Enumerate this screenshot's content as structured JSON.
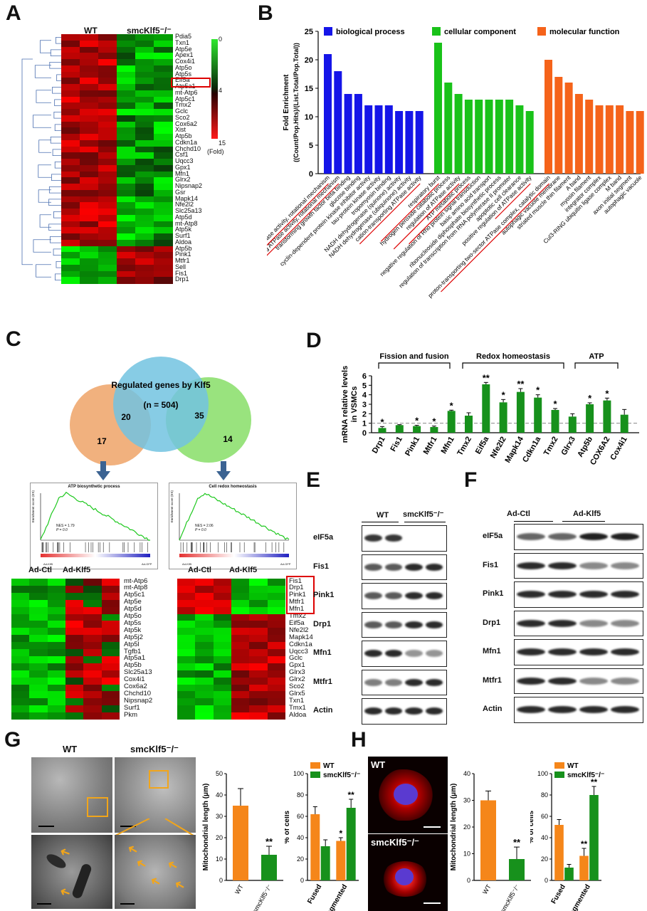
{
  "panels": {
    "A": "A",
    "B": "B",
    "C": "C",
    "D": "D",
    "E": "E",
    "F": "F",
    "G": "G",
    "H": "H"
  },
  "panelA": {
    "col_labels": [
      "WT",
      "smcKlf5⁻/⁻"
    ],
    "genes": [
      "Pdia5",
      "Txn1",
      "Atp5e",
      "Apex1",
      "Cox4i1",
      "Atp5o",
      "Atp5s",
      "Eif5a",
      "Atp5a1",
      "mt-Atp6",
      "Atp5c1",
      "Tmx2",
      "Gclc",
      "Sco2",
      "Cox6a2",
      "Xist",
      "Atp5b",
      "Cdkn1a",
      "Chchd10",
      "Csf1",
      "Uqcc3",
      "Gpx1",
      "Mfn1",
      "Glrx2",
      "Nipsnap2",
      "Gsr",
      "Mapk14",
      "Nfe2l2",
      "Slc25a13",
      "Atp5d",
      "mt-Atp8",
      "Atp5k",
      "Surf1",
      "Aldoa",
      "Atp5b",
      "Pink1",
      "Mtfr1",
      "Sell",
      "Fis1",
      "Drp1"
    ],
    "scale": {
      "top": "0",
      "mid": "4",
      "bottom": "15",
      "unit": "(Fold)"
    }
  },
  "panelB": {
    "chart_data": {
      "type": "bar",
      "ylabel": "Fold Enrichment ((Count/Pop.Hits)/(List.Total/Pop.Total))",
      "ylim": [
        0,
        25
      ],
      "yticks": [
        0,
        5,
        10,
        15,
        20,
        25
      ],
      "legend": [
        "biological process",
        "cellular component",
        "molecular function"
      ],
      "colors": [
        "#1515e8",
        "#19c219",
        "#f5631a"
      ],
      "groups": [
        {
          "name": "biological process",
          "categories": [
            "hydrogen ion transporting ATP synthase activity, rotational mechanism",
            "proton-transporting ATPase activity, rotational mechanism",
            "transforming growth factor beta binding",
            "glucose binding",
            "cyclin-dependent protein kinase inhibitor activity",
            "tau-protein kinase activity",
            "tropomyosin binding",
            "NADH dehydrogenase (quinone) activity",
            "NADH dehydrogenase (ubiquinone) activity",
            "cation-transporting ATPase activity"
          ],
          "values": [
            21,
            18,
            14,
            14,
            12,
            12,
            12,
            11,
            11,
            11
          ]
        },
        {
          "name": "cellular component",
          "categories": [
            "respiratory burst",
            "hydrogen peroxide catabolic process",
            "regulation of ATPase activity",
            "ATP metabolic process",
            "negative regulation of Rho protein signal transduction",
            "basic amino acid transport",
            "ribonucleoside diphosphate biosynthetic process",
            "regulation of transcription from RNA polymerase II promoter",
            "apoptotic cell clearance",
            "positive regulation of ATPase activity"
          ],
          "values": [
            23,
            16,
            14,
            13,
            13,
            13,
            13,
            13,
            12,
            11
          ]
        },
        {
          "name": "molecular function",
          "categories": [
            "proton-transporting two-sector ATPase complex, catalytic domain",
            "autophagic vacuole membrane",
            "striated muscle thin filament",
            "A band",
            "myosin filament",
            "integrator complex",
            "Cul3-RING ubiquitin ligase complex",
            "M band",
            "axon initial segment",
            "autophagic vacuole"
          ],
          "values": [
            20,
            17,
            16,
            14,
            13,
            12,
            12,
            12,
            11,
            11
          ]
        }
      ]
    }
  },
  "panelC": {
    "venn_center_title": "Regulated genes by Klf5",
    "venn_center_n": "(n = 504)",
    "venn_left_only": "17",
    "venn_left_overlap": "20",
    "venn_right_overlap": "35",
    "venn_right_only": "14",
    "gsea_left": {
      "title": "ATP biosynthetic process",
      "nes": "NES = 1.79",
      "p": "P = 0.0",
      "ylabel": "Enrichment score (ES)",
      "left_label": "Ad-Klf5",
      "right_label": "Ad-GFP",
      "ticks": [
        "0.45",
        "0.40",
        "0.35",
        "0.30",
        "0.25",
        "0.20",
        "0.15",
        "0.10",
        "0.05",
        "0.00"
      ]
    },
    "gsea_right": {
      "title": "Cell redox homeostasis",
      "nes": "NES = 2.06",
      "p": "P = 0.0",
      "ylabel": "Enrichment score (ES)",
      "left_label": "Ad-Klf5",
      "right_label": "Ad-GFP",
      "ticks": [
        "0.45",
        "0.40",
        "0.35",
        "0.30",
        "0.25",
        "0.20",
        "0.15",
        "0.10",
        "0.05",
        "0.00"
      ]
    },
    "heat_left": {
      "cols": [
        "Ad-Ctl",
        "Ad-Klf5"
      ],
      "genes": [
        "mt-Atp6",
        "mt-Atp8",
        "Atp5c1",
        "Atp5e",
        "Atp5d",
        "Atp5o",
        "Atp5s",
        "Atp5k",
        "Atp5j2",
        "Atp5l",
        "Tgfb1",
        "Atp5a1",
        "Atp5b",
        "Slc25a13",
        "Cox4i1",
        "Cox6a2",
        "Chchd10",
        "Nipsnap2",
        "Surf1",
        "Pkm"
      ]
    },
    "heat_right": {
      "cols": [
        "Ad-Ctl",
        "Ad-Klf5"
      ],
      "genes": [
        "Fis1",
        "Drp1",
        "Pink1",
        "Mtfr1",
        "Mfn1",
        "Tmx2",
        "Eif5a",
        "Nfe2l2",
        "Mapk14",
        "Cdkn1a",
        "Uqcc3",
        "Gclc",
        "Gpx1",
        "Glrx3",
        "Glrx2",
        "Sco2",
        "Glrx5",
        "Txn1",
        "Tmx1",
        "Aldoa"
      ]
    }
  },
  "panelD": {
    "chart_data": {
      "type": "bar",
      "ylabel": "mRNA relative levels in VSMCs",
      "ylim": [
        0,
        6
      ],
      "yticks": [
        0,
        1,
        2,
        3,
        4,
        5,
        6
      ],
      "categories": [
        "Drp1",
        "Fis1",
        "Pink1",
        "Mtfr1",
        "Mfn1",
        "Tmx2",
        "Eif5a",
        "Nfe2l2",
        "Mapk14",
        "Cdkn1a",
        "Tmx2",
        "Glrx3",
        "Atp5b",
        "COX6A2",
        "Cox4i1"
      ],
      "values": [
        0.5,
        0.8,
        0.7,
        0.6,
        2.3,
        1.8,
        5.1,
        3.2,
        4.3,
        3.7,
        2.4,
        1.7,
        3.0,
        3.4,
        1.9
      ],
      "errors": [
        0.15,
        0.05,
        0.08,
        0.1,
        0.08,
        0.3,
        0.2,
        0.3,
        0.35,
        0.3,
        0.15,
        0.3,
        0.15,
        0.25,
        0.55
      ],
      "sig": [
        "*",
        "",
        "*",
        "*",
        "*",
        "",
        "**",
        "*",
        "**",
        "*",
        "*",
        "",
        "*",
        "*",
        ""
      ],
      "groups": [
        "Fission and  fusion",
        "Redox homeostasis",
        "ATP"
      ],
      "reference_line": 1
    }
  },
  "panelE": {
    "cols": [
      "WT",
      "smcKlf5⁻/⁻"
    ],
    "rows": [
      "eIF5a",
      "Fis1",
      "Pink1",
      "Drp1",
      "Mfn1",
      "Mtfr1",
      "Actin"
    ]
  },
  "panelF": {
    "cols": [
      "Ad-Ctl",
      "Ad-Klf5"
    ],
    "rows": [
      "eIF5a",
      "Fis1",
      "Pink1",
      "Drp1",
      "Mfn1",
      "Mtfr1",
      "Actin"
    ]
  },
  "panelG": {
    "img_labels": [
      "WT",
      "smcKlf5⁻/⁻"
    ],
    "chart1": {
      "chart_data": {
        "type": "bar",
        "ylabel": "Mitochondrial length (μm)",
        "ylim": [
          0,
          50
        ],
        "yticks": [
          0,
          10,
          20,
          30,
          40,
          50
        ],
        "categories": [
          "WT",
          "smcKlf5⁻/⁻"
        ],
        "values": [
          35,
          12
        ],
        "errors": [
          8,
          4
        ],
        "sig": [
          "",
          "**"
        ]
      }
    },
    "chart2": {
      "chart_data": {
        "type": "bar",
        "ylabel": "% of cells",
        "ylim": [
          0,
          100
        ],
        "yticks": [
          0,
          20,
          40,
          60,
          80,
          100
        ],
        "categories": [
          "Fused",
          "Fragmented"
        ],
        "series": [
          {
            "name": "WT",
            "values": [
              62,
              37
            ]
          },
          {
            "name": "smcKlf5⁻/⁻",
            "values": [
              32,
              68
            ]
          }
        ],
        "errors": [
          [
            7,
            3
          ],
          [
            6,
            8
          ]
        ],
        "sig": [
          [
            "",
            "*"
          ],
          [
            "",
            "**"
          ]
        ]
      }
    }
  },
  "panelH": {
    "img_labels": [
      "WT",
      "smcKlf5⁻/⁻"
    ],
    "chart1": {
      "chart_data": {
        "type": "bar",
        "ylabel": "Mitochondrial length (μm)",
        "ylim": [
          0,
          40
        ],
        "yticks": [
          0,
          10,
          20,
          30,
          40
        ],
        "categories": [
          "WT",
          "smcKlf5⁻/⁻"
        ],
        "values": [
          30,
          8
        ],
        "errors": [
          3.5,
          4.5
        ],
        "sig": [
          "",
          "**"
        ]
      }
    },
    "chart2": {
      "chart_data": {
        "type": "bar",
        "ylabel": "% of cells",
        "ylim": [
          0,
          100
        ],
        "yticks": [
          0,
          20,
          40,
          60,
          80,
          100
        ],
        "categories": [
          "Fused",
          "Fragmented"
        ],
        "series": [
          {
            "name": "WT",
            "values": [
              52,
              23
            ]
          },
          {
            "name": "smcKlf5⁻/⁻",
            "values": [
              12,
              80
            ]
          }
        ],
        "errors": [
          [
            5,
            7
          ],
          [
            3,
            8
          ]
        ],
        "sig": [
          [
            "",
            "**"
          ],
          [
            "",
            "**"
          ]
        ]
      }
    }
  }
}
